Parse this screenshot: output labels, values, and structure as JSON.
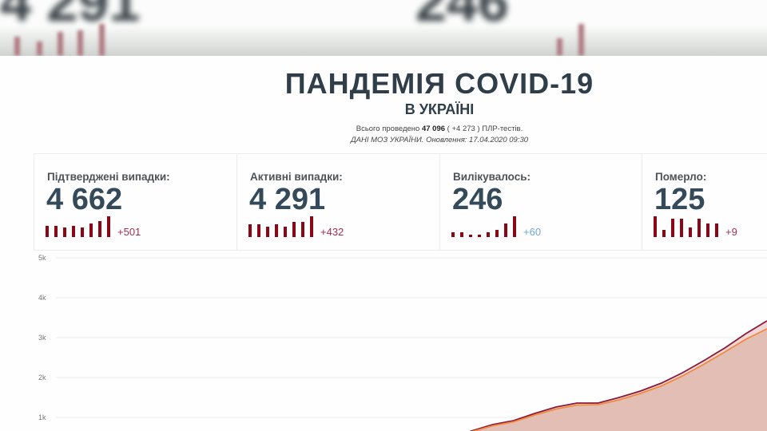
{
  "background_blur": {
    "values": [
      "4 291",
      "246"
    ]
  },
  "header": {
    "title": "ПАНДЕМІЯ COVID-19",
    "subtitle": "В УКРАЇНІ",
    "tests_prefix": "Всього проведено",
    "tests_total": "47 096",
    "tests_delta": "( +4 273 )",
    "tests_suffix": "ПЛР-тестів.",
    "source_line": "ДАНІ МОЗ УКРАЇНИ. Оновлення: 17.04.2020 09:30"
  },
  "cards": [
    {
      "label": "Підтверджені випадки:",
      "value": "4 662",
      "delta": "+501",
      "delta_color": "#a0304a",
      "spark": [
        5,
        5,
        4,
        5,
        4,
        6,
        7,
        9
      ]
    },
    {
      "label": "Активні випадки:",
      "value": "4 291",
      "delta": "+432",
      "delta_color": "#a0304a",
      "spark": [
        5,
        5,
        4,
        5,
        4,
        6,
        6,
        8
      ]
    },
    {
      "label": "Вилікувалось:",
      "value": "246",
      "delta": "+60",
      "delta_color": "#6fa8d6",
      "spark": [
        2,
        2,
        1,
        1,
        2,
        3,
        6,
        9
      ]
    },
    {
      "label": "Померло:",
      "value": "125",
      "delta": "+9",
      "delta_color": "#a0304a",
      "spark": [
        9,
        3,
        8,
        8,
        4,
        8,
        6,
        6
      ]
    }
  ],
  "chart_data": {
    "type": "area",
    "y_ticks": [
      "5k",
      "4k",
      "3k",
      "2k",
      "1k"
    ],
    "ylim": [
      0,
      5000
    ],
    "grid": true,
    "series": [
      {
        "color": "#8b1a3a",
        "values": [
          660,
          820,
          920,
          1100,
          1260,
          1360,
          1360,
          1500,
          1660,
          1860,
          2120,
          2420,
          2740,
          3100,
          3420
        ]
      },
      {
        "color": "#f08a3c",
        "values": [
          640,
          790,
          890,
          1060,
          1210,
          1310,
          1320,
          1440,
          1600,
          1790,
          2040,
          2330,
          2640,
          2960,
          3220
        ]
      }
    ]
  }
}
